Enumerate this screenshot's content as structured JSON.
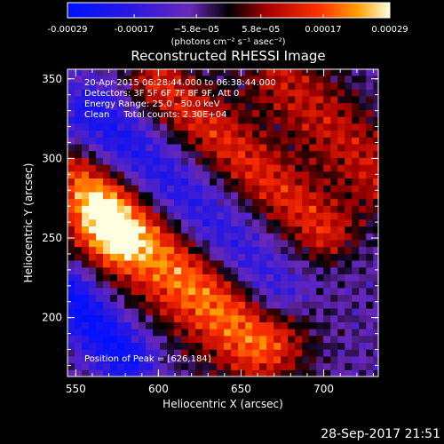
{
  "chart_data": {
    "type": "heatmap",
    "title": "Reconstructed RHESSI Image",
    "xlabel": "Heliocentric X (arcsec)",
    "ylabel": "Heliocentric Y (arcsec)",
    "xlim": [
      545,
      733
    ],
    "ylim": [
      163,
      356
    ],
    "x_ticks": [
      550,
      600,
      650,
      700
    ],
    "y_ticks": [
      200,
      250,
      300,
      350
    ],
    "colorbar": {
      "range": [
        -0.00029,
        0.00029
      ],
      "tick_values": [
        -0.00029,
        -0.00017,
        -5.8e-05,
        5.8e-05,
        0.00017,
        0.00029
      ],
      "tick_labels": [
        "-0.00029",
        "-0.00017",
        "−5.8e−05",
        "5.8e−05",
        "0.00017",
        "0.00029"
      ],
      "unit_label": "(photons cm⁻² s⁻¹ asec⁻²)"
    },
    "annotations": [
      "20-Apr-2015 06:28:44.000 to 06:38:44.000",
      "Detectors: 3F 5F 6F 7F 8F 9F, Att 0",
      "Energy Range: 25.0 - 50.0 keV",
      "Clean     Total counts: 2.30E+04"
    ],
    "peak_label": "Position of Peak = [626,184]",
    "peak": [
      626,
      184
    ],
    "features": [
      {
        "name": "lower-bright-ridge",
        "from": [
          572,
          262
        ],
        "to": [
          660,
          187
        ],
        "width": 20,
        "peak_norm": 0.95
      },
      {
        "name": "upper-bright-ridge",
        "from": [
          600,
          348
        ],
        "to": [
          700,
          255
        ],
        "width": 14,
        "peak_norm": 0.65
      },
      {
        "name": "right-band",
        "from": [
          675,
          350
        ],
        "to": [
          733,
          290
        ],
        "width": 18,
        "peak_norm": 0.55
      },
      {
        "name": "left-blob",
        "from": [
          550,
          290
        ],
        "to": [
          575,
          250
        ],
        "width": 12,
        "peak_norm": 0.6
      },
      {
        "name": "negative-trough",
        "from": [
          560,
          330
        ],
        "to": [
          670,
          215
        ],
        "width": 14,
        "peak_norm": -0.55
      },
      {
        "name": "negative-corner",
        "from": [
          545,
          215
        ],
        "to": [
          580,
          175
        ],
        "width": 12,
        "peak_norm": -0.75
      }
    ]
  },
  "timestamp": "28-Sep-2017 21:51"
}
